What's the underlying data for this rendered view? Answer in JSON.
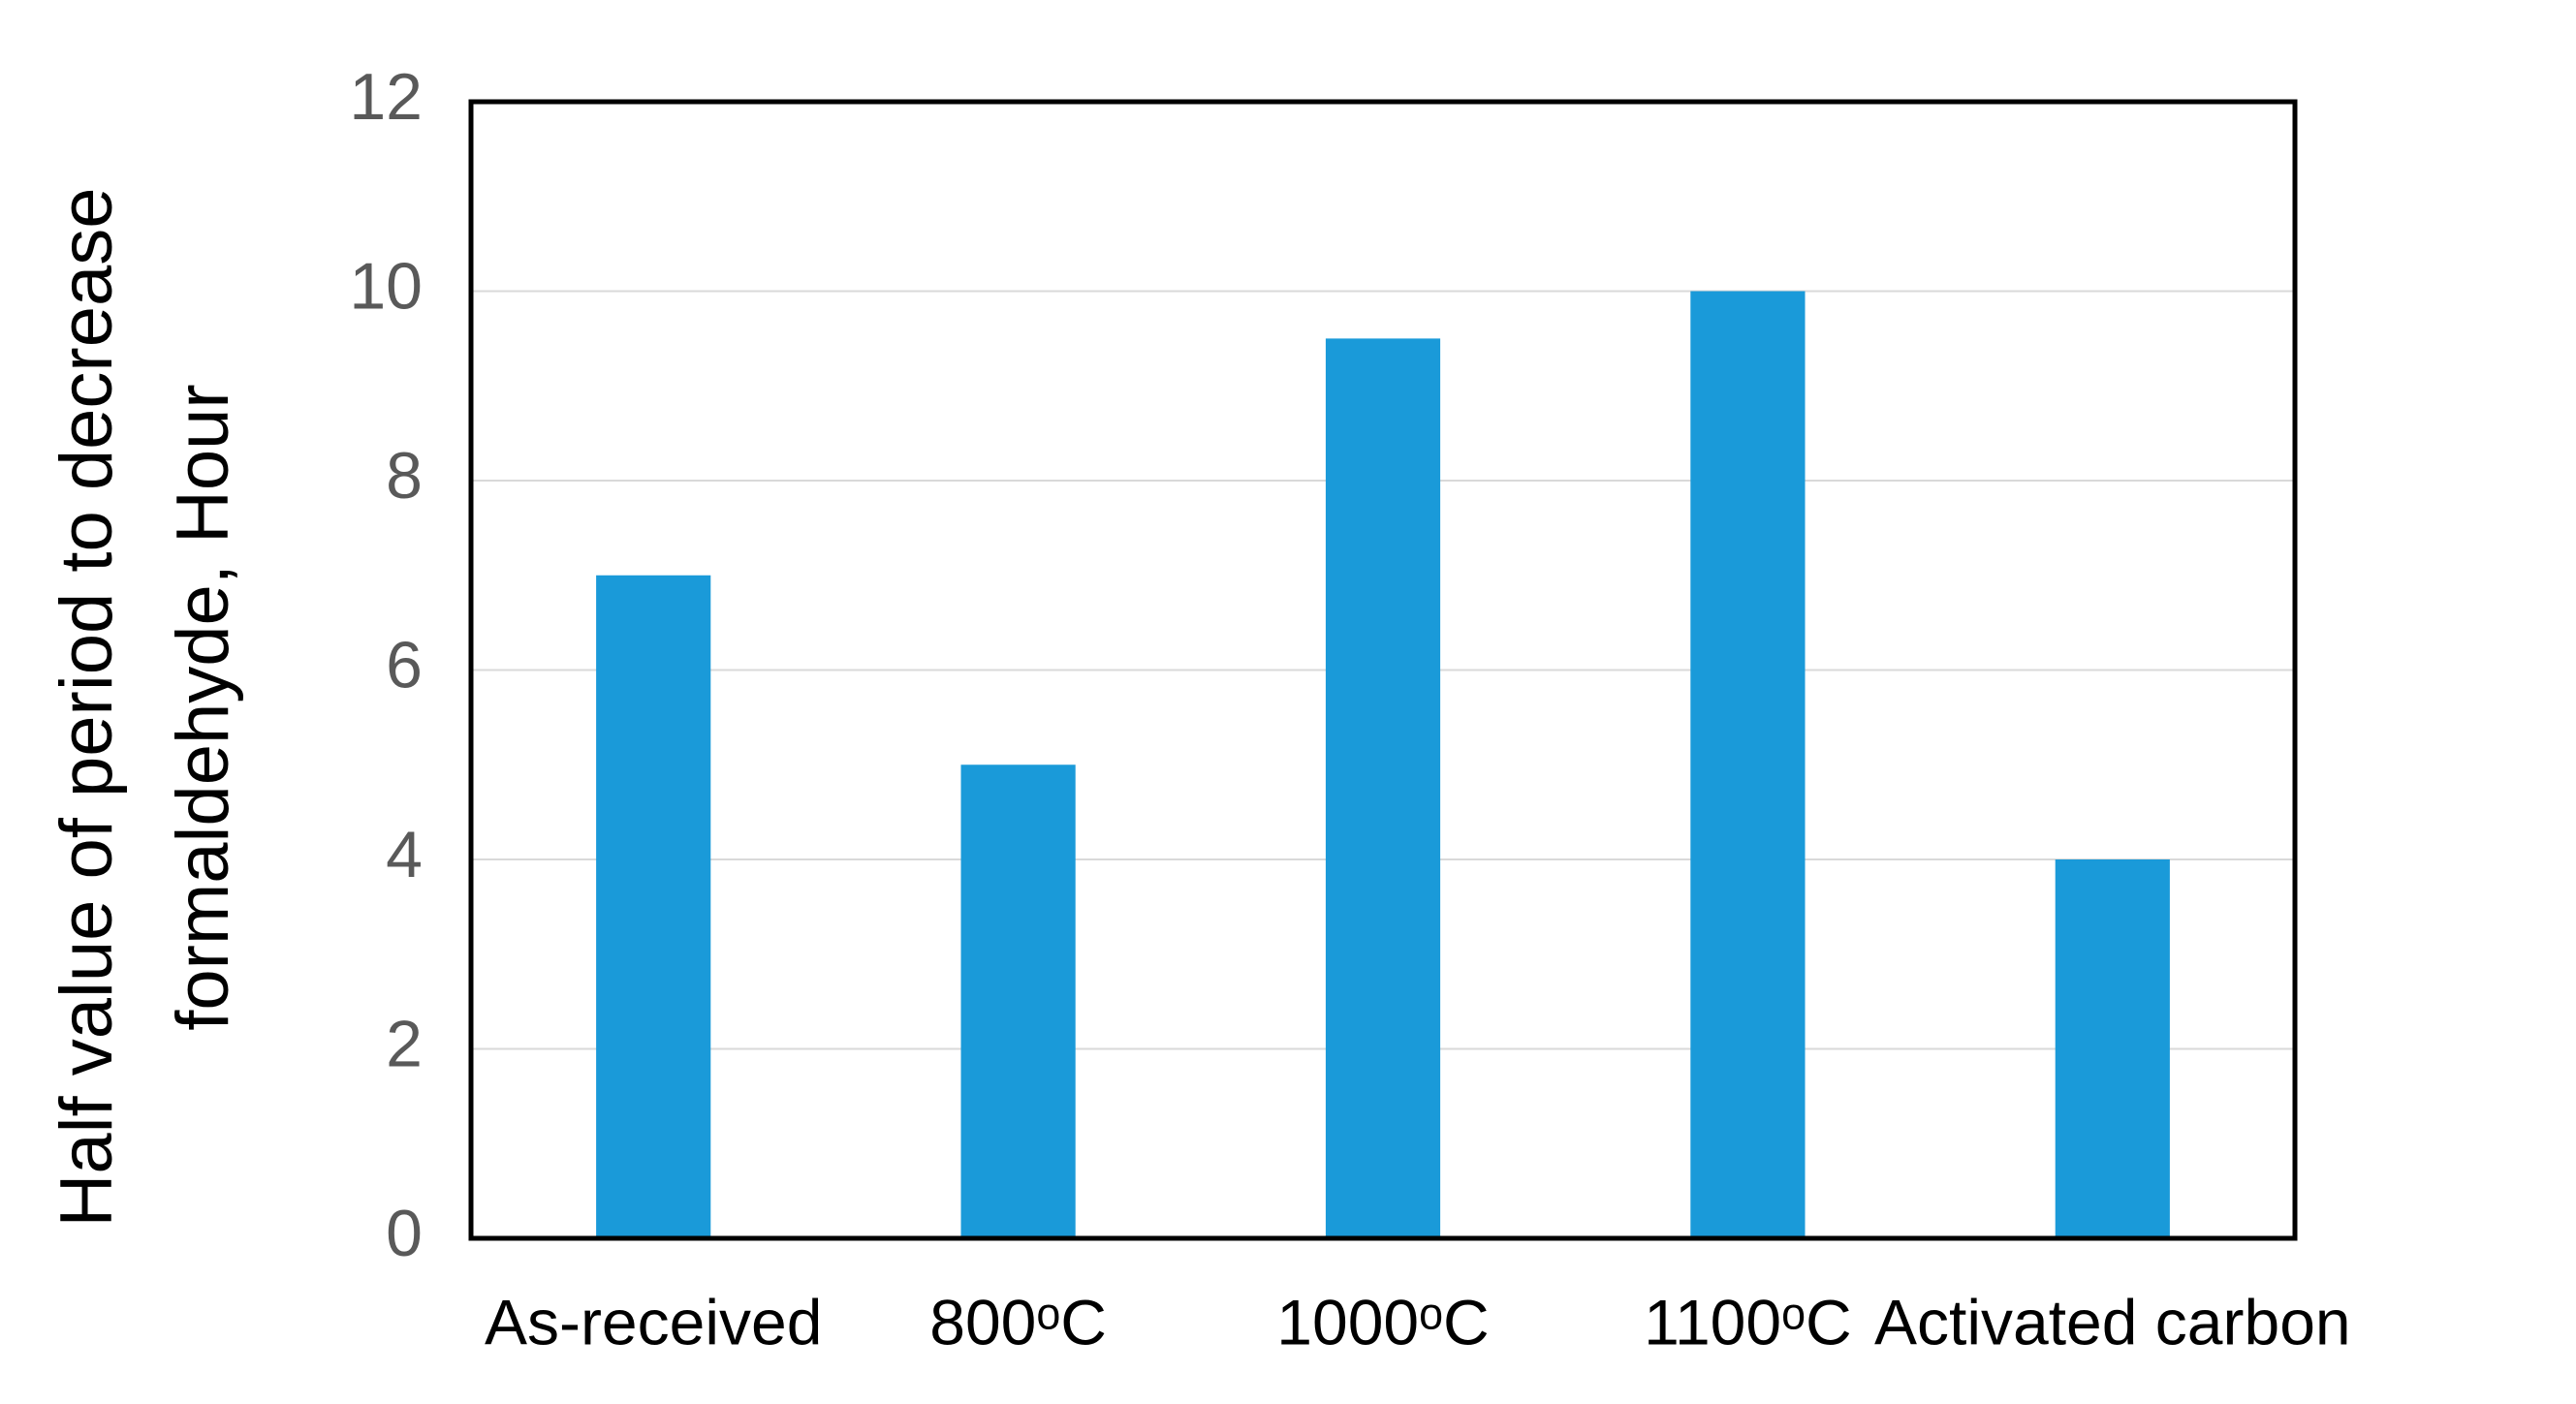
{
  "chart_data": {
    "type": "bar",
    "y_label": [
      "Half value of period to decrease",
      "formaldehyde, Hour"
    ],
    "categories": [
      "As-received",
      "800ᵒC",
      "1000ᵒC",
      "1100ᵒC",
      "Activated carbon"
    ],
    "values": [
      7,
      5,
      9.5,
      10,
      4
    ],
    "color": "#1a9ad9",
    "ylim": [
      0,
      12
    ],
    "yticks": [
      0,
      2,
      4,
      6,
      8,
      10,
      12
    ],
    "grid": true
  }
}
